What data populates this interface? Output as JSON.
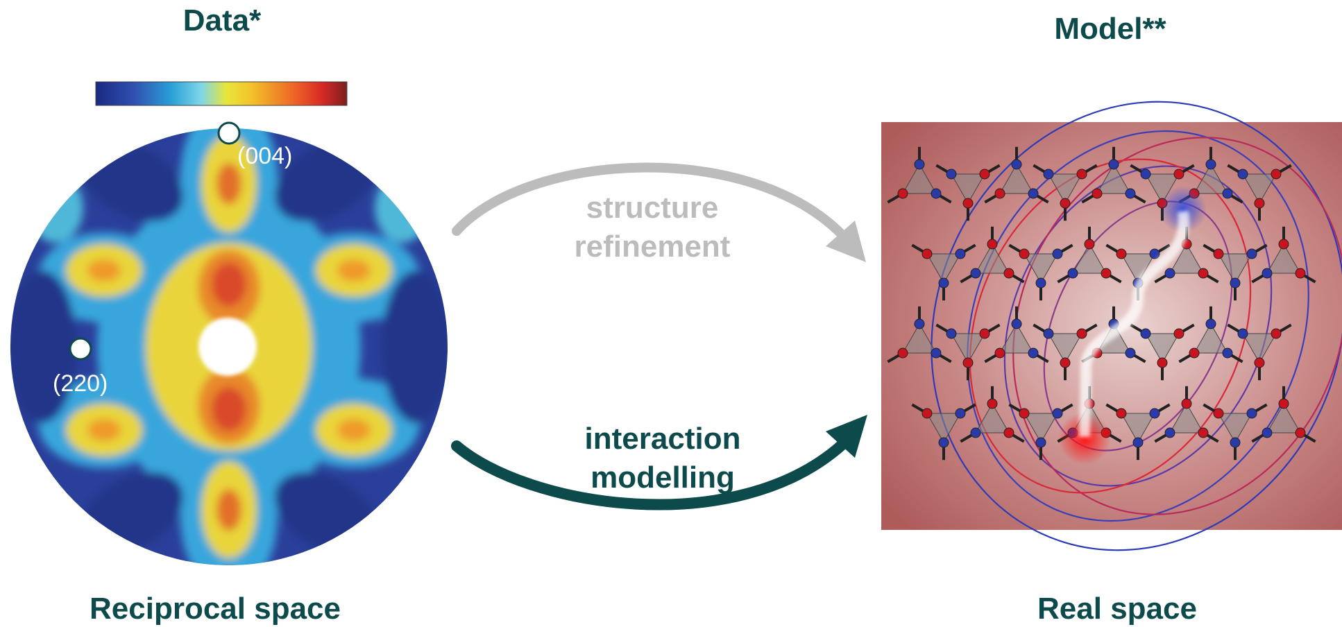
{
  "left": {
    "heading": "Data*",
    "caption": "Reciprocal space",
    "labels": {
      "p004": "(004)",
      "p220": "(220)"
    }
  },
  "right": {
    "heading": "Model**",
    "caption": "Real space"
  },
  "arrows": {
    "top": {
      "line1": "structure",
      "line2": "refinement"
    },
    "bottom": {
      "line1": "interaction",
      "line2": "modelling"
    }
  },
  "colors": {
    "heading": "#0d4a4c",
    "arrow_top": "#bcbcbc",
    "arrow_bottom": "#0d4a4c",
    "model_bg": "#b0605e"
  }
}
